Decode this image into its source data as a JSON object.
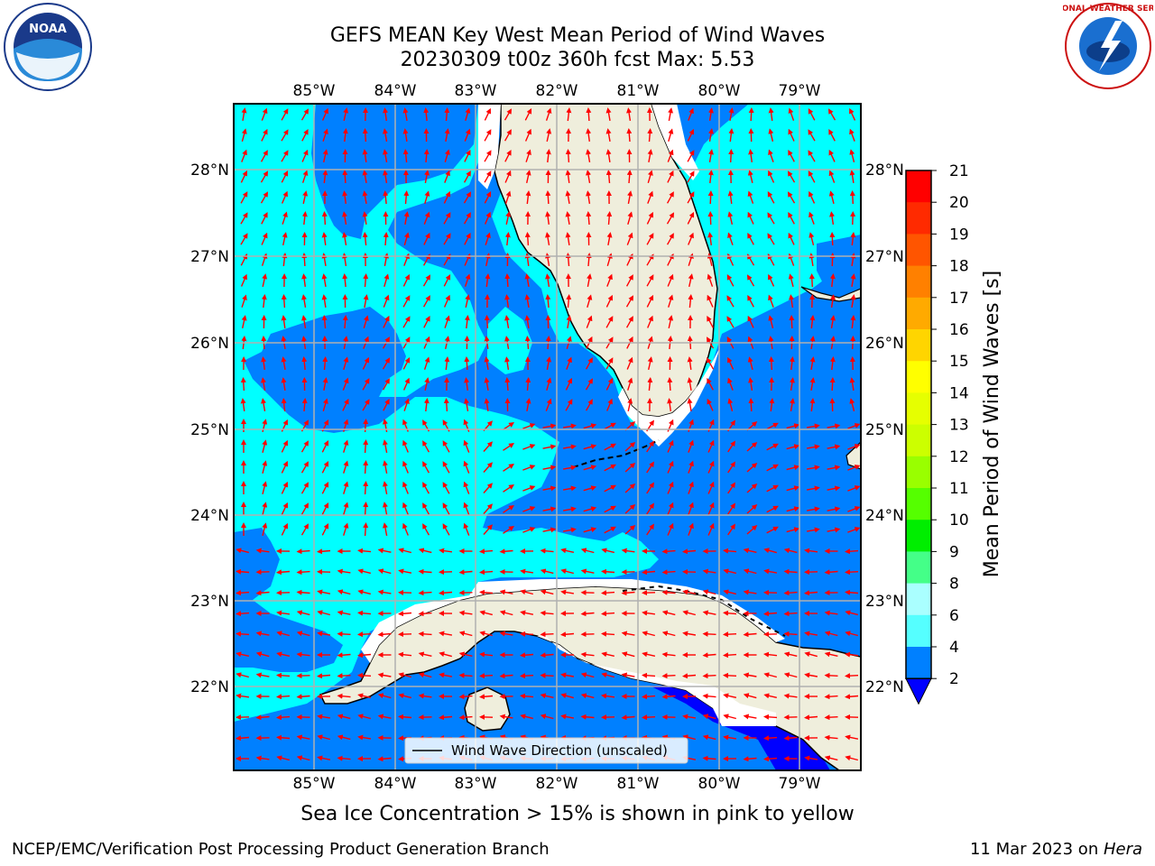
{
  "header": {
    "title_line1": "GEFS MEAN Key West Mean Period of Wind Waves",
    "title_line2": "20230309 t00z 360h fcst   Max: 5.53"
  },
  "logos": {
    "left_icon": "noaa-logo-icon",
    "left_text": "NOAA",
    "right_icon": "nws-logo-icon",
    "right_text": "NATIONAL WEATHER SERVICE"
  },
  "map": {
    "lon_labels": [
      "85°W",
      "84°W",
      "83°W",
      "82°W",
      "81°W",
      "80°W",
      "79°W"
    ],
    "lat_labels": [
      "28°N",
      "27°N",
      "26°N",
      "25°N",
      "24°N",
      "23°N",
      "22°N"
    ],
    "legend_label": "Wind Wave Direction (unscaled)",
    "colors": {
      "water_light": "#00ffff",
      "water_dark": "#0080ff",
      "land": "#efeedc",
      "arrow": "#ff0000",
      "grid": "#b0b0b0"
    }
  },
  "colorbar": {
    "label": "Mean Period of Wind Waves [s]",
    "ticks": [
      "21",
      "20",
      "19",
      "18",
      "17",
      "16",
      "15",
      "14",
      "13",
      "12",
      "11",
      "10",
      "9",
      "8",
      "6",
      "4",
      "2"
    ],
    "colors": [
      "#ff0000",
      "#ff2a00",
      "#ff5500",
      "#ff8000",
      "#ffaa00",
      "#ffd500",
      "#ffff00",
      "#e6ff00",
      "#ccff00",
      "#99ff00",
      "#55ff00",
      "#00ee00",
      "#44ff88",
      "#aaffff",
      "#55ffff",
      "#00ffff",
      "#0080ff"
    ],
    "under_color": "#0000ff"
  },
  "note": "Sea Ice Concentration > 15% is shown in pink to yellow",
  "footer": {
    "left": "NCEP/EMC/Verification Post Processing Product Generation Branch",
    "right_prefix": "11 Mar 2023 on ",
    "right_host": "Hera"
  }
}
